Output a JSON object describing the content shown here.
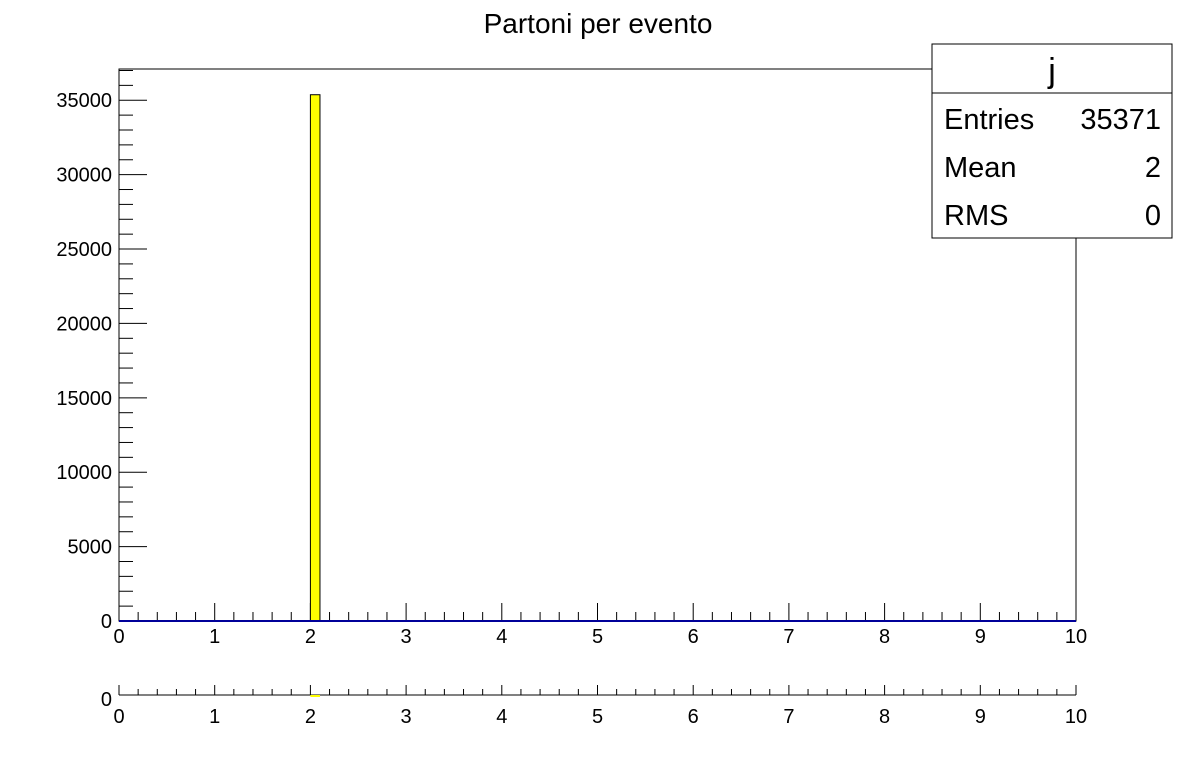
{
  "chart_data": {
    "type": "bar",
    "title": "Partoni per evento",
    "xlabel": "",
    "ylabel": "",
    "xlim": [
      0,
      10
    ],
    "ylim": [
      0,
      37100
    ],
    "nbins": 100,
    "bins": [
      {
        "x_low": 2.0,
        "x_high": 2.1,
        "value": 35371
      }
    ],
    "x_ticks": [
      "0",
      "1",
      "2",
      "3",
      "4",
      "5",
      "6",
      "7",
      "8",
      "9",
      "10"
    ],
    "y_ticks": [
      {
        "value": 0,
        "label": "0"
      },
      {
        "value": 5000,
        "label": "5000"
      },
      {
        "value": 10000,
        "label": "10000"
      },
      {
        "value": 15000,
        "label": "15000"
      },
      {
        "value": 20000,
        "label": "20000"
      },
      {
        "value": 25000,
        "label": "25000"
      },
      {
        "value": 30000,
        "label": "30000"
      },
      {
        "value": 35000,
        "label": "35000"
      }
    ],
    "grid": false,
    "bar_color": "#ffff00",
    "bar_edge_color": "#000000",
    "baseline_color": "#000099",
    "stats_box": {
      "name": "j",
      "rows": [
        {
          "label": "Entries",
          "value": "35371"
        },
        {
          "label": "Mean",
          "value": "2"
        },
        {
          "label": "RMS",
          "value": "0"
        }
      ],
      "position": "top-right"
    },
    "secondary_panel": {
      "y_label": "0",
      "x_ticks": [
        "0",
        "1",
        "2",
        "3",
        "4",
        "5",
        "6",
        "7",
        "8",
        "9",
        "10"
      ]
    }
  }
}
